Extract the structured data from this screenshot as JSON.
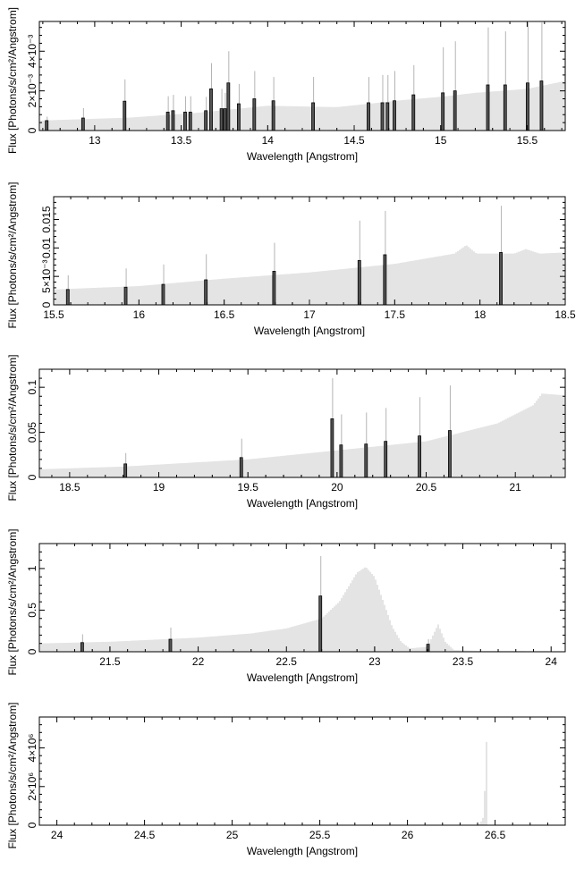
{
  "chart_data": [
    {
      "type": "bar",
      "xlabel": "Wavelength [Angstrom]",
      "ylabel": "Flux [Photons/s/cm²/Angstrom]",
      "xlim": [
        12.68,
        15.72
      ],
      "ylim": [
        0,
        0.0055
      ],
      "xticks": [
        {
          "value": 13,
          "label": "13"
        },
        {
          "value": 13.5,
          "label": "13.5"
        },
        {
          "value": 14,
          "label": "14"
        },
        {
          "value": 14.5,
          "label": "14.5"
        },
        {
          "value": 15,
          "label": "15"
        },
        {
          "value": 15.5,
          "label": "15.5"
        }
      ],
      "yticks": [
        {
          "value": 0,
          "label": "0"
        },
        {
          "value": 0.002,
          "label": "2×10⁻³"
        },
        {
          "value": 0.004,
          "label": "4×10⁻³"
        }
      ],
      "continuum": [
        [
          12.68,
          0.0005
        ],
        [
          13.2,
          0.00065
        ],
        [
          13.6,
          0.0009
        ],
        [
          14.0,
          0.00125
        ],
        [
          14.4,
          0.00118
        ],
        [
          14.8,
          0.00155
        ],
        [
          15.0,
          0.0017
        ],
        [
          15.2,
          0.0019
        ],
        [
          15.5,
          0.0021
        ],
        [
          15.72,
          0.0025
        ]
      ],
      "lines": [
        {
          "x": 12.72,
          "y": 0.0005,
          "err": 0.0002
        },
        {
          "x": 12.93,
          "y": 0.00063,
          "err": 0.0005
        },
        {
          "x": 13.17,
          "y": 0.00148,
          "err": 0.0011
        },
        {
          "x": 13.42,
          "y": 0.00093,
          "err": 0.0008
        },
        {
          "x": 13.45,
          "y": 0.001,
          "err": 0.0008
        },
        {
          "x": 13.52,
          "y": 0.00093,
          "err": 0.0008
        },
        {
          "x": 13.55,
          "y": 0.00093,
          "err": 0.0008
        },
        {
          "x": 13.64,
          "y": 0.001,
          "err": 0.0007
        },
        {
          "x": 13.67,
          "y": 0.0021,
          "err": 0.0013
        },
        {
          "x": 13.73,
          "y": 0.0011,
          "err": 0.001
        },
        {
          "x": 13.75,
          "y": 0.0011,
          "err": 0.0008
        },
        {
          "x": 13.77,
          "y": 0.0024,
          "err": 0.0016
        },
        {
          "x": 13.83,
          "y": 0.00135,
          "err": 0.001
        },
        {
          "x": 13.92,
          "y": 0.0016,
          "err": 0.0014
        },
        {
          "x": 14.03,
          "y": 0.0015,
          "err": 0.0012
        },
        {
          "x": 14.26,
          "y": 0.0014,
          "err": 0.0013
        },
        {
          "x": 14.58,
          "y": 0.0014,
          "err": 0.0013
        },
        {
          "x": 14.66,
          "y": 0.0014,
          "err": 0.0014
        },
        {
          "x": 14.69,
          "y": 0.0014,
          "err": 0.0014
        },
        {
          "x": 14.73,
          "y": 0.0015,
          "err": 0.0015
        },
        {
          "x": 14.84,
          "y": 0.0018,
          "err": 0.0015
        },
        {
          "x": 15.01,
          "y": 0.0019,
          "err": 0.0023
        },
        {
          "x": 15.08,
          "y": 0.002,
          "err": 0.0025
        },
        {
          "x": 15.27,
          "y": 0.0023,
          "err": 0.0029
        },
        {
          "x": 15.37,
          "y": 0.0023,
          "err": 0.0027
        },
        {
          "x": 15.5,
          "y": 0.0024,
          "err": 0.0032
        },
        {
          "x": 15.58,
          "y": 0.0025,
          "err": 0.003
        }
      ]
    },
    {
      "type": "bar",
      "xlabel": "Wavelength [Angstrom]",
      "ylabel": "Flux [Photons/s/cm²/Angstrom]",
      "xlim": [
        15.5,
        18.5
      ],
      "ylim": [
        0,
        0.019
      ],
      "xticks": [
        {
          "value": 15.5,
          "label": "15.5"
        },
        {
          "value": 16,
          "label": "16"
        },
        {
          "value": 16.5,
          "label": "16.5"
        },
        {
          "value": 17,
          "label": "17"
        },
        {
          "value": 17.5,
          "label": "17.5"
        },
        {
          "value": 18,
          "label": "18"
        },
        {
          "value": 18.5,
          "label": "18.5"
        }
      ],
      "yticks": [
        {
          "value": 0,
          "label": "0"
        },
        {
          "value": 0.005,
          "label": "5×10⁻³"
        },
        {
          "value": 0.01,
          "label": "0.01"
        },
        {
          "value": 0.015,
          "label": "0.015"
        }
      ],
      "continuum": [
        [
          15.5,
          0.0027
        ],
        [
          16.0,
          0.0033
        ],
        [
          16.5,
          0.0046
        ],
        [
          17.0,
          0.0057
        ],
        [
          17.5,
          0.0072
        ],
        [
          17.85,
          0.009
        ],
        [
          17.92,
          0.0105
        ],
        [
          17.98,
          0.009
        ],
        [
          18.2,
          0.009
        ],
        [
          18.27,
          0.0098
        ],
        [
          18.35,
          0.009
        ],
        [
          18.5,
          0.0092
        ]
      ],
      "lines": [
        {
          "x": 15.58,
          "y": 0.0027,
          "err": 0.0025
        },
        {
          "x": 15.92,
          "y": 0.0031,
          "err": 0.0033
        },
        {
          "x": 16.14,
          "y": 0.0036,
          "err": 0.0035
        },
        {
          "x": 16.39,
          "y": 0.0044,
          "err": 0.0045
        },
        {
          "x": 16.79,
          "y": 0.0059,
          "err": 0.005
        },
        {
          "x": 17.29,
          "y": 0.0078,
          "err": 0.007
        },
        {
          "x": 17.44,
          "y": 0.0088,
          "err": 0.0077
        },
        {
          "x": 18.12,
          "y": 0.0092,
          "err": 0.0082
        }
      ]
    },
    {
      "type": "bar",
      "xlabel": "Wavelength [Angstrom]",
      "ylabel": "Flux [Photons/s/cm²/Angstrom]",
      "xlim": [
        18.33,
        21.28
      ],
      "ylim": [
        0,
        0.12
      ],
      "xticks": [
        {
          "value": 18.5,
          "label": "18.5"
        },
        {
          "value": 19,
          "label": "19"
        },
        {
          "value": 19.5,
          "label": "19.5"
        },
        {
          "value": 20,
          "label": "20"
        },
        {
          "value": 20.5,
          "label": "20.5"
        },
        {
          "value": 21,
          "label": "21"
        }
      ],
      "yticks": [
        {
          "value": 0,
          "label": "0"
        },
        {
          "value": 0.05,
          "label": "0.05"
        },
        {
          "value": 0.1,
          "label": "0.1"
        }
      ],
      "continuum": [
        [
          18.33,
          0.009
        ],
        [
          18.8,
          0.012
        ],
        [
          19.5,
          0.02
        ],
        [
          20.0,
          0.03
        ],
        [
          20.5,
          0.04
        ],
        [
          20.9,
          0.06
        ],
        [
          21.1,
          0.08
        ],
        [
          21.15,
          0.093
        ],
        [
          21.28,
          0.091
        ]
      ],
      "lines": [
        {
          "x": 18.81,
          "y": 0.015,
          "err": 0.012
        },
        {
          "x": 19.46,
          "y": 0.022,
          "err": 0.021
        },
        {
          "x": 19.97,
          "y": 0.065,
          "err": 0.045
        },
        {
          "x": 20.02,
          "y": 0.036,
          "err": 0.034
        },
        {
          "x": 20.16,
          "y": 0.037,
          "err": 0.035
        },
        {
          "x": 20.27,
          "y": 0.04,
          "err": 0.037
        },
        {
          "x": 20.46,
          "y": 0.046,
          "err": 0.043
        },
        {
          "x": 20.63,
          "y": 0.052,
          "err": 0.05
        }
      ]
    },
    {
      "type": "bar",
      "xlabel": "Wavelength [Angstrom]",
      "ylabel": "Flux [Photons/s/cm²/Angstrom]",
      "xlim": [
        21.1,
        24.08
      ],
      "ylim": [
        0,
        1.3
      ],
      "xticks": [
        {
          "value": 21.5,
          "label": "21.5"
        },
        {
          "value": 22,
          "label": "22"
        },
        {
          "value": 22.5,
          "label": "22.5"
        },
        {
          "value": 23,
          "label": "23"
        },
        {
          "value": 23.5,
          "label": "23.5"
        },
        {
          "value": 24,
          "label": "24"
        }
      ],
      "yticks": [
        {
          "value": 0,
          "label": "0"
        },
        {
          "value": 0.5,
          "label": "0.5"
        },
        {
          "value": 1,
          "label": "1"
        }
      ],
      "continuum": [
        [
          21.1,
          0.1
        ],
        [
          21.5,
          0.12
        ],
        [
          22.0,
          0.17
        ],
        [
          22.3,
          0.22
        ],
        [
          22.5,
          0.28
        ],
        [
          22.7,
          0.4
        ],
        [
          22.8,
          0.6
        ],
        [
          22.9,
          0.95
        ],
        [
          22.95,
          1.02
        ],
        [
          23.0,
          0.9
        ],
        [
          23.05,
          0.6
        ],
        [
          23.1,
          0.3
        ],
        [
          23.15,
          0.12
        ],
        [
          23.2,
          0.04
        ],
        [
          23.3,
          0.06
        ],
        [
          23.36,
          0.33
        ],
        [
          23.4,
          0.12
        ],
        [
          23.45,
          0.02
        ],
        [
          23.6,
          0.01
        ],
        [
          24.08,
          0.005
        ]
      ],
      "lines": [
        {
          "x": 21.34,
          "y": 0.11,
          "err": 0.1
        },
        {
          "x": 21.84,
          "y": 0.15,
          "err": 0.14
        },
        {
          "x": 22.69,
          "y": 0.67,
          "err": 0.48
        },
        {
          "x": 23.3,
          "y": 0.09,
          "err": 0.06
        }
      ]
    },
    {
      "type": "bar",
      "xlabel": "Wavelength [Angstrom]",
      "ylabel": "Flux [Photons/s/cm²/Angstrom]",
      "xlim": [
        23.9,
        26.9
      ],
      "ylim": [
        0,
        5600000
      ],
      "xticks": [
        {
          "value": 24,
          "label": "24"
        },
        {
          "value": 24.5,
          "label": "24.5"
        },
        {
          "value": 25,
          "label": "25"
        },
        {
          "value": 25.5,
          "label": "25.5"
        },
        {
          "value": 26,
          "label": "26"
        },
        {
          "value": 26.5,
          "label": "26.5"
        }
      ],
      "yticks": [
        {
          "value": 0,
          "label": "0"
        },
        {
          "value": 2000000,
          "label": "2×10⁶"
        },
        {
          "value": 4000000,
          "label": "4×10⁶"
        }
      ],
      "continuum": [
        [
          23.9,
          0
        ],
        [
          26.39,
          0
        ],
        [
          26.41,
          80000
        ],
        [
          26.43,
          300000
        ],
        [
          26.44,
          1500000
        ],
        [
          26.45,
          4800000
        ],
        [
          26.46,
          0
        ],
        [
          26.9,
          0
        ]
      ],
      "lines": []
    }
  ]
}
